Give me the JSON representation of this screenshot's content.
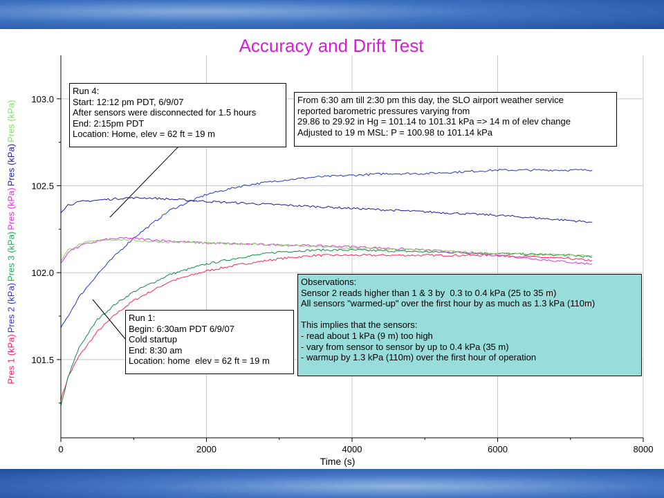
{
  "chart_data": {
    "type": "line",
    "title": "Accuracy and Drift Test",
    "xlabel": "Time (s)",
    "xlim": [
      0,
      8000
    ],
    "ylim": [
      101.05,
      103.25
    ],
    "x_ticks": [
      "0",
      "2000",
      "4000",
      "6000",
      "8000"
    ],
    "y_ticks": [
      "101.5",
      "102.0",
      "102.5",
      "103.0"
    ],
    "y_tick_values": [
      101.5,
      102.0,
      102.5,
      103.0
    ],
    "grid": true,
    "ylabel_parts": [
      {
        "label": "Pres 1 (kPa)",
        "color": "#ff1a6a"
      },
      {
        "label": "Pres 2 (kPa)",
        "color": "#3333cc"
      },
      {
        "label": "Pres 3 (kPa)",
        "color": "#22aa55"
      },
      {
        "label": "Pres (kPa)",
        "color": "#dd33dd"
      },
      {
        "label": "Pres (kPa)",
        "color": "#2222aa"
      },
      {
        "label": "Pres (kPa)",
        "color": "#88dd66"
      }
    ],
    "series": [
      {
        "color": "#ff2255",
        "x": [
          0,
          100,
          250,
          500,
          750,
          1000,
          1500,
          2000,
          2500,
          3000,
          3500,
          4000,
          5000,
          6000,
          7000,
          7300
        ],
        "y": [
          101.27,
          101.4,
          101.52,
          101.66,
          101.76,
          101.84,
          101.95,
          102.01,
          102.05,
          102.08,
          102.1,
          102.1,
          102.1,
          102.1,
          102.08,
          102.07
        ]
      },
      {
        "color": "#118844",
        "x": [
          0,
          100,
          250,
          500,
          750,
          1000,
          1500,
          2000,
          2500,
          3000,
          3500,
          4000,
          5000,
          6000,
          7000,
          7300
        ],
        "y": [
          101.23,
          101.4,
          101.57,
          101.73,
          101.82,
          101.89,
          101.99,
          102.05,
          102.09,
          102.12,
          102.13,
          102.13,
          102.12,
          102.11,
          102.1,
          102.09
        ]
      },
      {
        "color": "#2233cc",
        "x": [
          0,
          250,
          500,
          750,
          1000,
          1500,
          2000,
          2500,
          3000,
          3500,
          4000,
          4500,
          5000,
          5500,
          6000,
          6500,
          7000,
          7300
        ],
        "y": [
          101.68,
          101.86,
          101.99,
          102.1,
          102.2,
          102.36,
          102.45,
          102.5,
          102.53,
          102.55,
          102.56,
          102.57,
          102.57,
          102.58,
          102.59,
          102.59,
          102.59,
          102.59
        ]
      },
      {
        "color": "#1a1a99",
        "x": [
          0,
          100,
          300,
          600,
          900,
          1200,
          1600,
          2000,
          2500,
          3000,
          4000,
          5000,
          6000,
          7000,
          7300
        ],
        "y": [
          102.35,
          102.39,
          102.41,
          102.42,
          102.43,
          102.43,
          102.42,
          102.41,
          102.4,
          102.39,
          102.37,
          102.35,
          102.33,
          102.3,
          102.29
        ]
      },
      {
        "color": "#dd33dd",
        "x": [
          0,
          100,
          300,
          600,
          900,
          1200,
          2000,
          3000,
          4000,
          5000,
          6000,
          6500,
          7000,
          7300
        ],
        "y": [
          102.05,
          102.12,
          102.16,
          102.19,
          102.2,
          102.19,
          102.17,
          102.16,
          102.15,
          102.13,
          102.1,
          102.08,
          102.06,
          102.05
        ]
      },
      {
        "color": "#88cc66",
        "x": [
          0,
          100,
          300,
          600,
          900,
          1200,
          2000,
          3000,
          4000,
          5000,
          6000,
          7000,
          7300
        ],
        "y": [
          102.07,
          102.13,
          102.17,
          102.19,
          102.19,
          102.18,
          102.17,
          102.16,
          102.14,
          102.13,
          102.11,
          102.1,
          102.1
        ]
      }
    ],
    "annotations": {
      "run4": [
        "Run 4:",
        "Start: 12:12 pm PDT, 6/9/07",
        "After sensors were disconnected for 1.5 hours",
        "End: 2:15pm PDT",
        "Location: Home, elev = 62 ft = 19 m"
      ],
      "airport": [
        "From 6:30 am till 2:30 pm this day, the SLO airport weather service",
        "reported barometric pressures varying from",
        "29.86 to 29.92 in Hg = 101.14 to 101.31 kPa => 14 m of elev change",
        "Adjusted to 19 m MSL: P = 100.98 to 101.14 kPa"
      ],
      "observations": [
        "Observations:",
        "Sensor 2 reads higher than 1 & 3 by  0.3 to 0.4 kPa (25 to 35 m)",
        "All sensors \"warmed-up\" over the first hour by as much as 1.3 kPa (110m)",
        "",
        "This implies that the sensors:",
        "- read about 1 kPa (9 m) too high",
        "- vary from sensor to sensor by up to 0.4 kPa (35 m)",
        "- warmup by 1.3 kPa (110m) over the first hour of operation"
      ],
      "run1": [
        "Run 1:",
        "Begin: 6:30am PDT 6/9/07",
        "Cold startup",
        "End: 8:30 am",
        "Location: home  elev = 62 ft = 19 m"
      ]
    }
  }
}
